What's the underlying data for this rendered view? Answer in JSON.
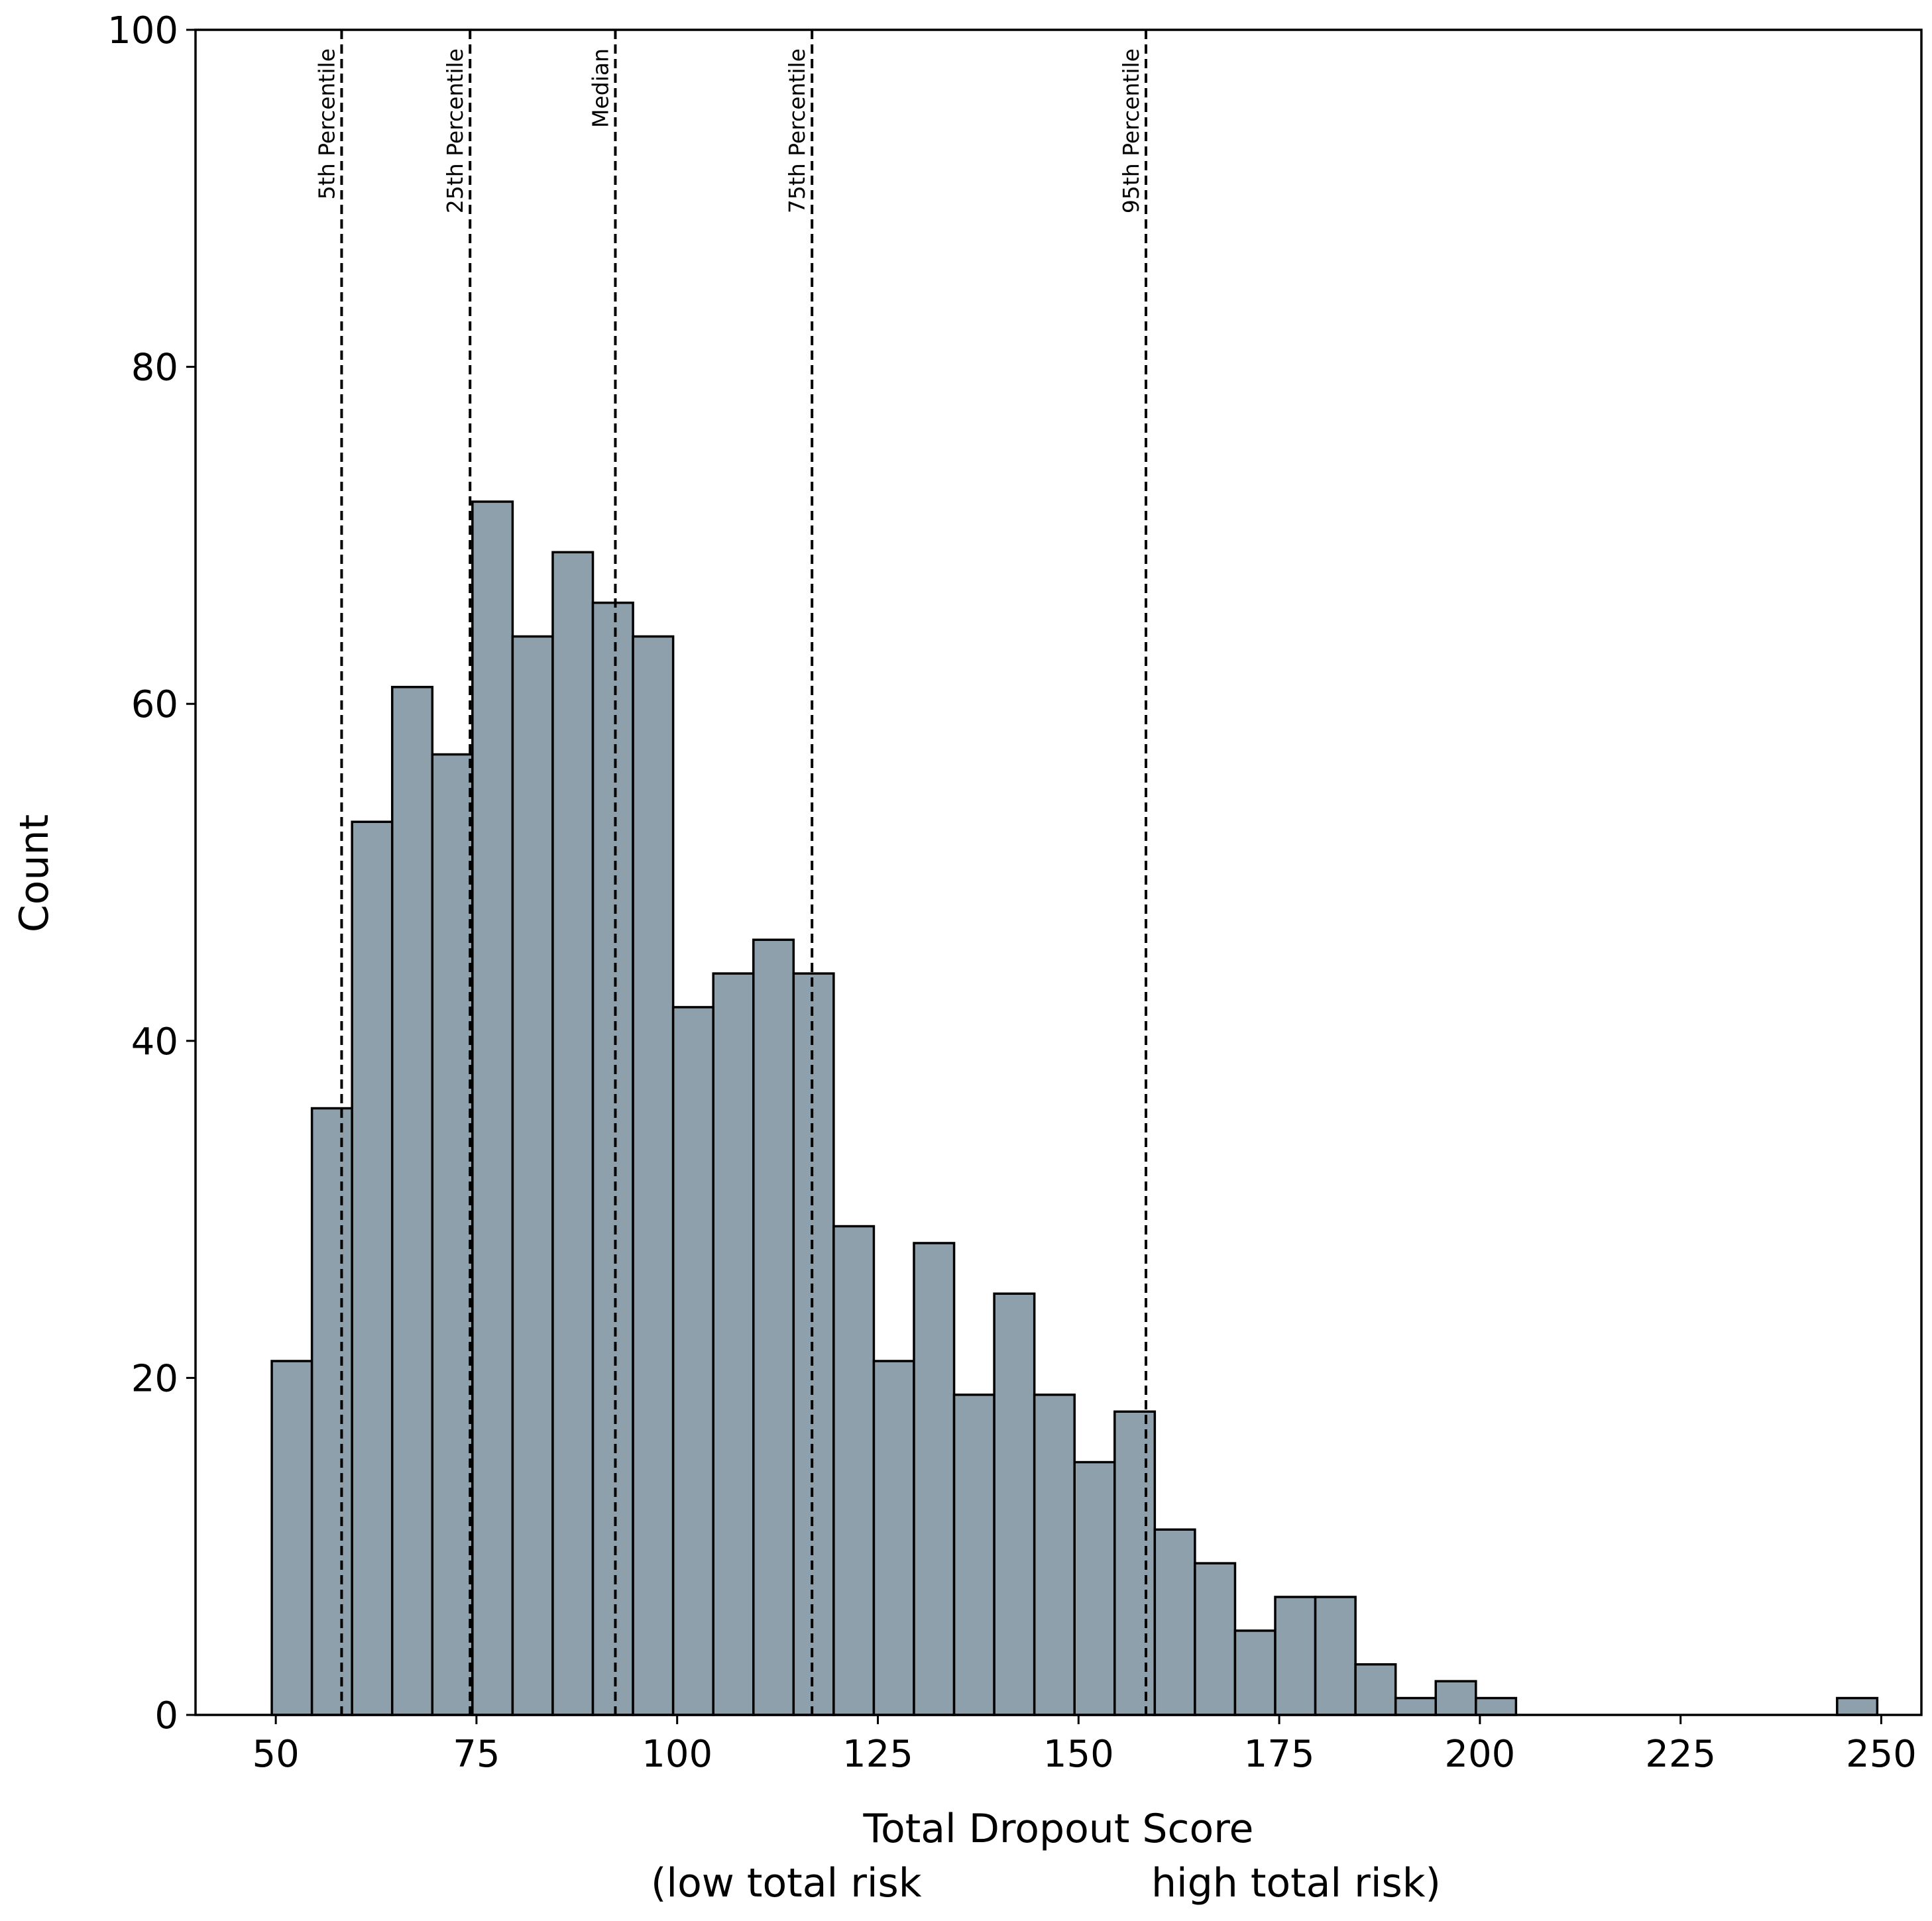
{
  "chart_data": {
    "type": "bar",
    "subtype": "histogram",
    "xlabel": "Total Dropout Score",
    "xlabel_sub_left": "(low total risk",
    "xlabel_sub_right": "high total risk)",
    "ylabel": "Count",
    "xlim": [
      40,
      255
    ],
    "ylim": [
      0,
      100
    ],
    "x_ticks": [
      50,
      75,
      100,
      125,
      150,
      175,
      200,
      225,
      250
    ],
    "y_ticks": [
      0,
      20,
      40,
      60,
      80,
      100
    ],
    "grid": false,
    "bar_color": "#8fa0ad",
    "edge_color": "#000000",
    "bins": [
      {
        "x0": 49.5,
        "x1": 54.5,
        "count": 21
      },
      {
        "x0": 54.5,
        "x1": 59.5,
        "count": 36
      },
      {
        "x0": 59.5,
        "x1": 64.5,
        "count": 53
      },
      {
        "x0": 64.5,
        "x1": 69.5,
        "count": 61
      },
      {
        "x0": 69.5,
        "x1": 74.5,
        "count": 57
      },
      {
        "x0": 74.5,
        "x1": 79.5,
        "count": 72
      },
      {
        "x0": 79.5,
        "x1": 84.5,
        "count": 64
      },
      {
        "x0": 84.5,
        "x1": 89.5,
        "count": 69
      },
      {
        "x0": 89.5,
        "x1": 94.5,
        "count": 66
      },
      {
        "x0": 94.5,
        "x1": 99.5,
        "count": 64
      },
      {
        "x0": 99.5,
        "x1": 104.5,
        "count": 42
      },
      {
        "x0": 104.5,
        "x1": 109.5,
        "count": 44
      },
      {
        "x0": 109.5,
        "x1": 114.5,
        "count": 46
      },
      {
        "x0": 114.5,
        "x1": 119.5,
        "count": 44
      },
      {
        "x0": 119.5,
        "x1": 124.5,
        "count": 29
      },
      {
        "x0": 124.5,
        "x1": 129.5,
        "count": 21
      },
      {
        "x0": 129.5,
        "x1": 134.5,
        "count": 28
      },
      {
        "x0": 134.5,
        "x1": 139.5,
        "count": 19
      },
      {
        "x0": 139.5,
        "x1": 144.5,
        "count": 25
      },
      {
        "x0": 144.5,
        "x1": 149.5,
        "count": 19
      },
      {
        "x0": 149.5,
        "x1": 154.5,
        "count": 15
      },
      {
        "x0": 154.5,
        "x1": 159.5,
        "count": 18
      },
      {
        "x0": 159.5,
        "x1": 164.5,
        "count": 11
      },
      {
        "x0": 164.5,
        "x1": 169.5,
        "count": 9
      },
      {
        "x0": 169.5,
        "x1": 174.5,
        "count": 5
      },
      {
        "x0": 174.5,
        "x1": 179.5,
        "count": 7
      },
      {
        "x0": 179.5,
        "x1": 184.5,
        "count": 7
      },
      {
        "x0": 184.5,
        "x1": 189.5,
        "count": 3
      },
      {
        "x0": 189.5,
        "x1": 194.5,
        "count": 1
      },
      {
        "x0": 194.5,
        "x1": 199.5,
        "count": 2
      },
      {
        "x0": 199.5,
        "x1": 204.5,
        "count": 1
      },
      {
        "x0": 244.5,
        "x1": 249.5,
        "count": 1
      }
    ],
    "reference_lines": [
      {
        "label": "5th Percentile",
        "x": 58.2
      },
      {
        "label": "25th Percentile",
        "x": 74.2
      },
      {
        "label": "Median",
        "x": 92.3
      },
      {
        "label": "75th Percentile",
        "x": 116.8
      },
      {
        "label": "95th Percentile",
        "x": 158.4
      }
    ]
  }
}
